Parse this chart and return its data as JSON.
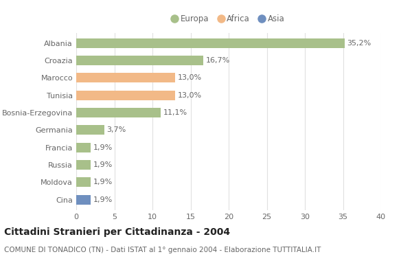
{
  "categories": [
    "Albania",
    "Croazia",
    "Marocco",
    "Tunisia",
    "Bosnia-Erzegovina",
    "Germania",
    "Francia",
    "Russia",
    "Moldova",
    "Cina"
  ],
  "values": [
    35.2,
    16.7,
    13.0,
    13.0,
    11.1,
    3.7,
    1.9,
    1.9,
    1.9,
    1.9
  ],
  "labels": [
    "35,2%",
    "16,7%",
    "13,0%",
    "13,0%",
    "11,1%",
    "3,7%",
    "1,9%",
    "1,9%",
    "1,9%",
    "1,9%"
  ],
  "colors": [
    "#a8c08a",
    "#a8c08a",
    "#f2b987",
    "#f2b987",
    "#a8c08a",
    "#a8c08a",
    "#a8c08a",
    "#a8c08a",
    "#a8c08a",
    "#6f8fbf"
  ],
  "legend_labels": [
    "Europa",
    "Africa",
    "Asia"
  ],
  "legend_colors": [
    "#a8c08a",
    "#f2b987",
    "#6f8fbf"
  ],
  "title": "Cittadini Stranieri per Cittadinanza - 2004",
  "subtitle": "COMUNE DI TONADICO (TN) - Dati ISTAT al 1° gennaio 2004 - Elaborazione TUTTITALIA.IT",
  "xlim": [
    0,
    40
  ],
  "xticks": [
    0,
    5,
    10,
    15,
    20,
    25,
    30,
    35,
    40
  ],
  "background_color": "#ffffff",
  "plot_bg_color": "#ffffff",
  "grid_color": "#e0e0e0",
  "text_color": "#666666",
  "title_color": "#222222",
  "subtitle_color": "#666666",
  "title_fontsize": 10,
  "subtitle_fontsize": 7.5,
  "tick_fontsize": 8,
  "label_fontsize": 8,
  "bar_height": 0.55
}
